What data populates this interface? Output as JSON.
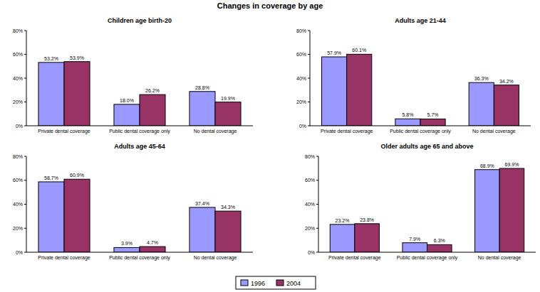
{
  "title": "Changes in coverage by age",
  "chart_data": [
    {
      "type": "bar",
      "title": "Children age birth-20",
      "categories": [
        "Private dental coverage",
        "Public dental coverage only",
        "No dental coverage"
      ],
      "series": [
        {
          "name": "1996",
          "color": "#9999ff",
          "values": [
            53.2,
            18.0,
            28.8
          ],
          "value_labels": [
            "53.2%",
            "18.0%",
            "28.8%"
          ]
        },
        {
          "name": "2004",
          "color": "#993366",
          "values": [
            53.9,
            26.2,
            19.9
          ],
          "value_labels": [
            "53.9%",
            "26.2%",
            "19.9%"
          ]
        }
      ],
      "ylim": [
        0,
        80
      ],
      "yticks": [
        {
          "value": 0,
          "label": "0%"
        },
        {
          "value": 20,
          "label": "20%"
        },
        {
          "value": 40,
          "label": "40%"
        },
        {
          "value": 60,
          "label": "60%"
        },
        {
          "value": 80,
          "label": "80%"
        }
      ],
      "grid": false,
      "data_labels": true,
      "legend": "bottom"
    },
    {
      "type": "bar",
      "title": "Adults age 21-44",
      "categories": [
        "Private dental coverage",
        "Public dental coverage only",
        "No dental coverage"
      ],
      "series": [
        {
          "name": "1996",
          "color": "#9999ff",
          "values": [
            57.9,
            5.8,
            36.3
          ],
          "value_labels": [
            "57.9%",
            "5.8%",
            "36.3%"
          ]
        },
        {
          "name": "2004",
          "color": "#993366",
          "values": [
            60.1,
            5.7,
            34.2
          ],
          "value_labels": [
            "60.1%",
            "5.7%",
            "34.2%"
          ]
        }
      ],
      "ylim": [
        0,
        80
      ],
      "yticks": [
        {
          "value": 0,
          "label": "0%"
        },
        {
          "value": 20,
          "label": "20%"
        },
        {
          "value": 40,
          "label": "40%"
        },
        {
          "value": 60,
          "label": "60%"
        },
        {
          "value": 80,
          "label": "80%"
        }
      ],
      "grid": false,
      "data_labels": true
    },
    {
      "type": "bar",
      "title": "Adults age 45-64",
      "categories": [
        "Private dental coverage",
        "Public dental coverage only",
        "No dental coverage"
      ],
      "series": [
        {
          "name": "1996",
          "color": "#9999ff",
          "values": [
            58.7,
            3.9,
            37.4
          ],
          "value_labels": [
            "58.7%",
            "3.9%",
            "37.4%"
          ]
        },
        {
          "name": "2004",
          "color": "#993366",
          "values": [
            60.9,
            4.7,
            34.3
          ],
          "value_labels": [
            "60.9%",
            "4.7%",
            "34.3%"
          ]
        }
      ],
      "ylim": [
        0,
        80
      ],
      "yticks": [
        {
          "value": 0,
          "label": "0%"
        },
        {
          "value": 20,
          "label": "20%"
        },
        {
          "value": 40,
          "label": "40%"
        },
        {
          "value": 60,
          "label": "60%"
        },
        {
          "value": 80,
          "label": "80%"
        }
      ],
      "grid": false,
      "data_labels": true
    },
    {
      "type": "bar",
      "title": "Older adults age 65 and above",
      "categories": [
        "Private dental coverage",
        "Public dental coverage only",
        "No dental coverage"
      ],
      "series": [
        {
          "name": "1996",
          "color": "#9999ff",
          "values": [
            23.2,
            7.9,
            68.9
          ],
          "value_labels": [
            "23.2%",
            "7.9%",
            "68.9%"
          ]
        },
        {
          "name": "2004",
          "color": "#993366",
          "values": [
            23.8,
            6.3,
            69.9
          ],
          "value_labels": [
            "23.8%",
            "6.3%",
            "69.9%"
          ]
        }
      ],
      "ylim": [
        0,
        80
      ],
      "yticks": [
        {
          "value": 0,
          "label": "0%"
        },
        {
          "value": 20,
          "label": "20%"
        },
        {
          "value": 40,
          "label": "40%"
        },
        {
          "value": 60,
          "label": "60%"
        },
        {
          "value": 80,
          "label": "80%"
        }
      ],
      "grid": false,
      "data_labels": true
    }
  ]
}
